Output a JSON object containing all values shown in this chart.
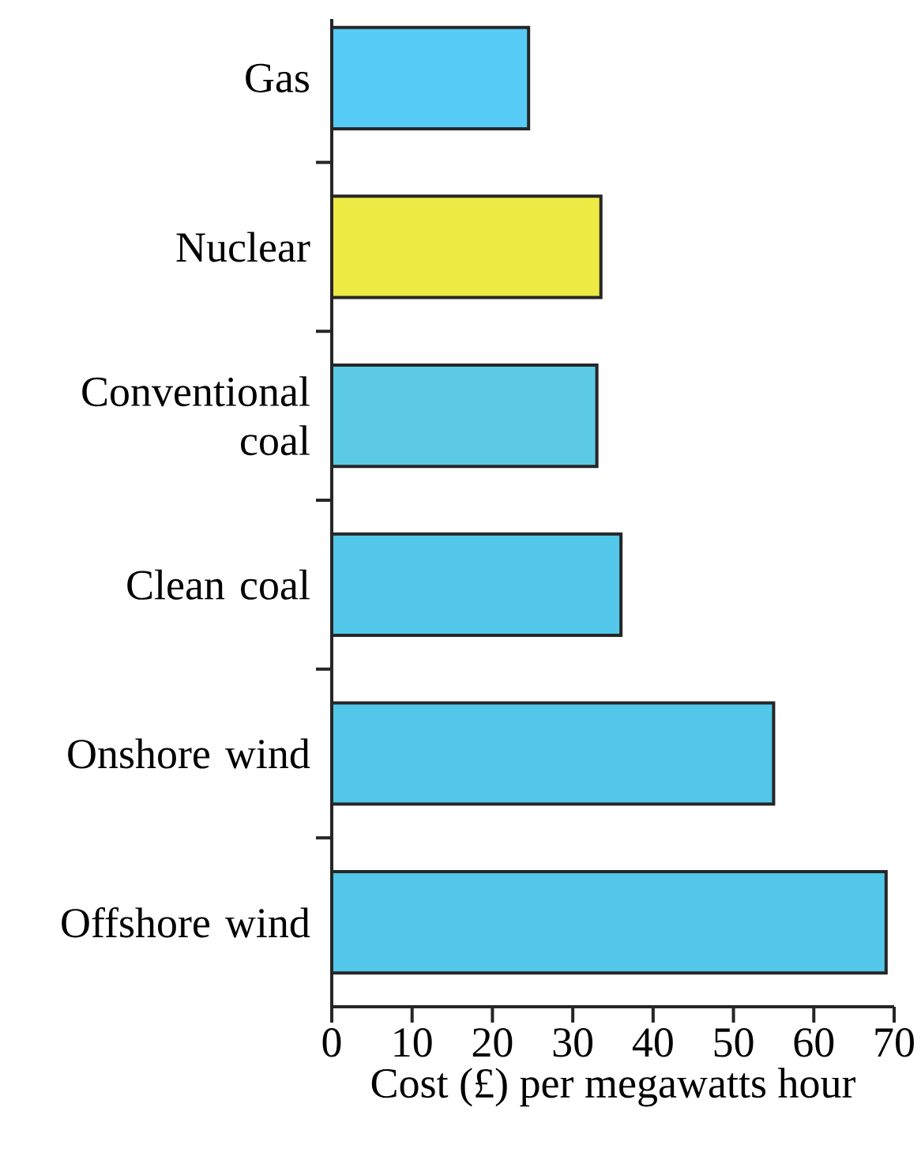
{
  "chart_data": {
    "type": "bar",
    "orientation": "horizontal",
    "xlabel": "Cost (£) per megawatts hour",
    "categories": [
      "Gas",
      "Nuclear",
      "Conventional coal",
      "Clean coal",
      "Onshore wind",
      "Offshore wind"
    ],
    "values": [
      24.5,
      33.5,
      33,
      36,
      55,
      69
    ],
    "colors": [
      "#55cbf5",
      "#eeea44",
      "#5ccae5",
      "#53c7ea",
      "#53c7ea",
      "#53c7ea"
    ],
    "xlim": [
      0,
      70
    ],
    "xticks": [
      0,
      10,
      20,
      30,
      40,
      50,
      60,
      70
    ]
  }
}
